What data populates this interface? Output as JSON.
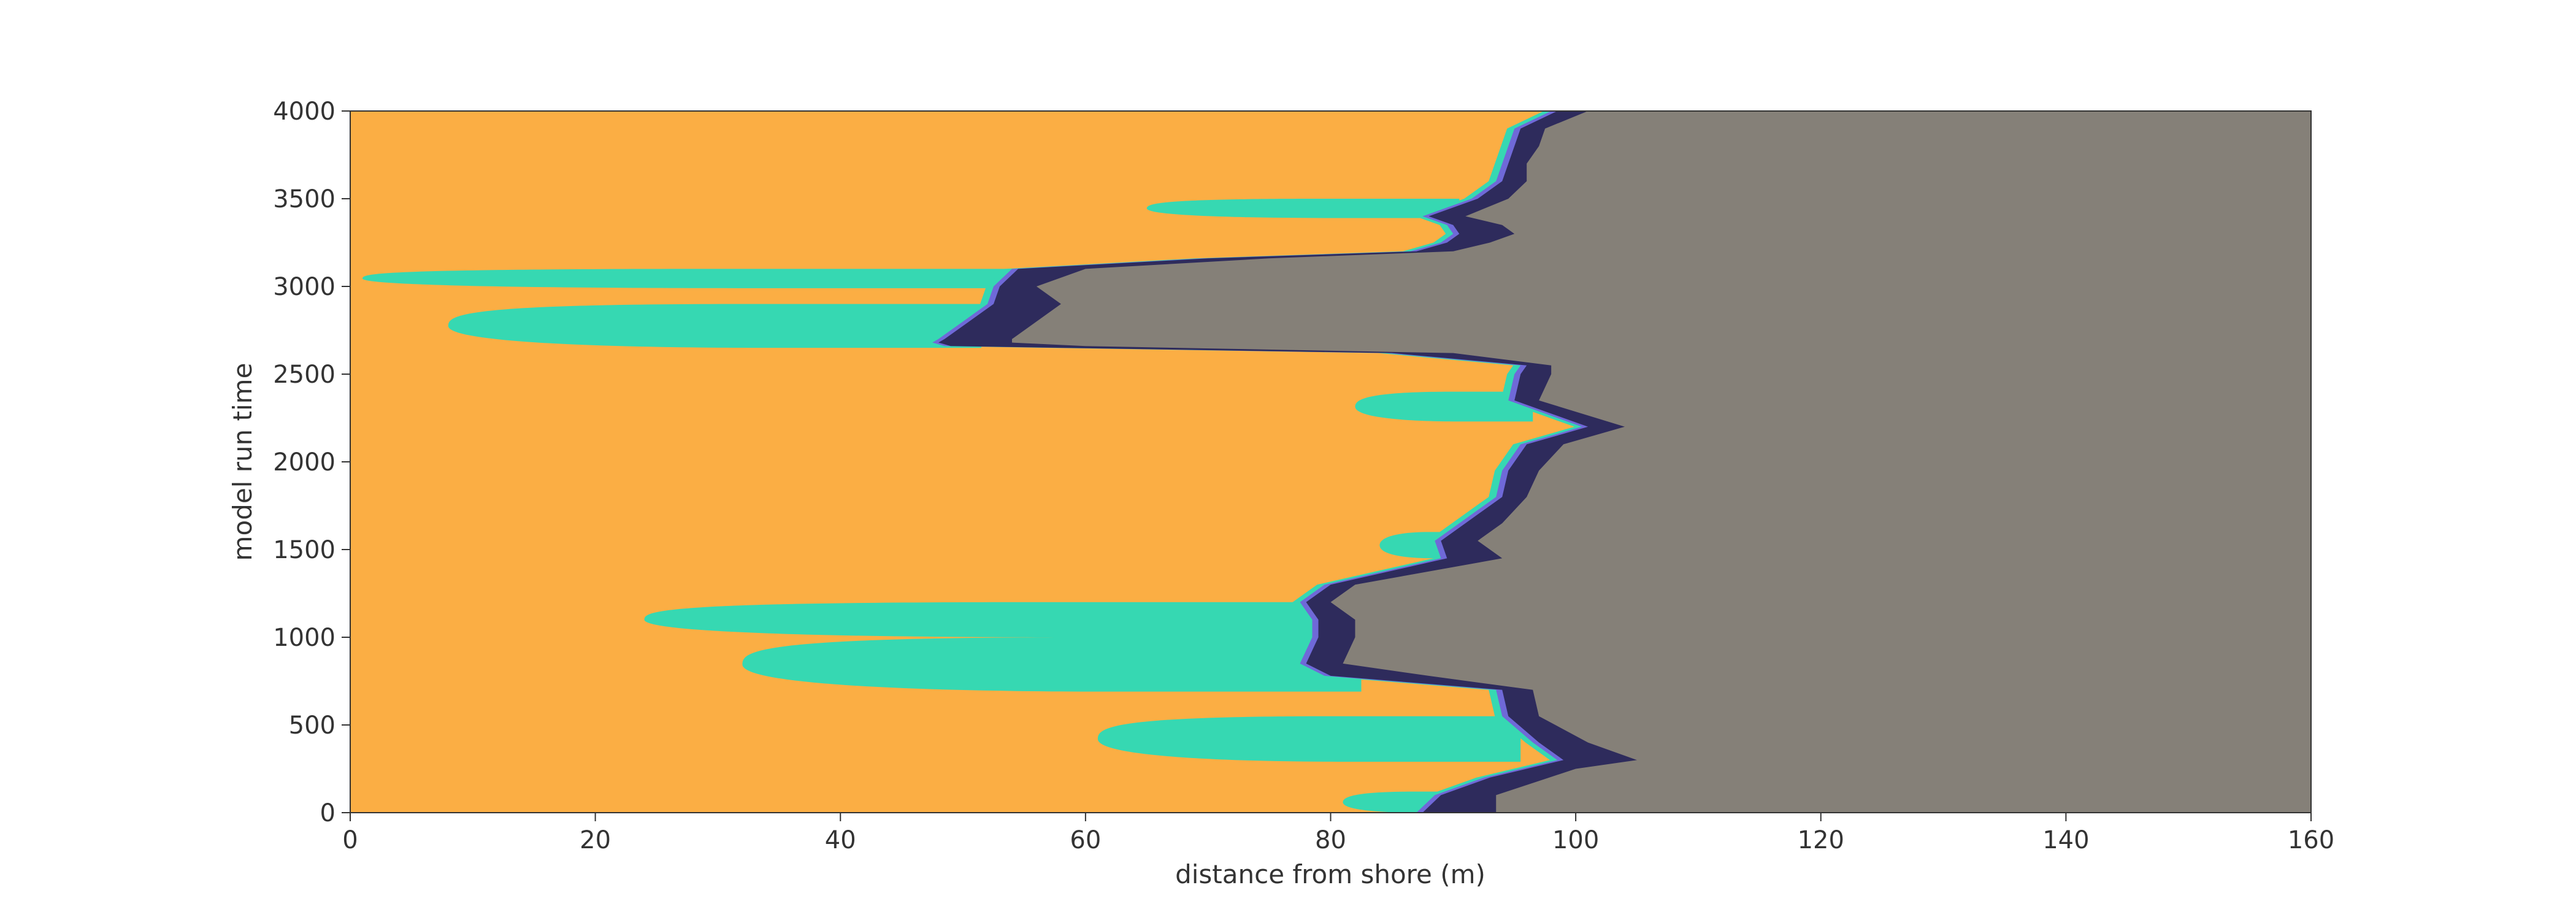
{
  "chart_data": {
    "type": "area",
    "title": "",
    "xlabel": "distance from shore (m)",
    "ylabel": "model run time",
    "xlim": [
      0,
      160
    ],
    "ylim": [
      0,
      4000
    ],
    "xticks": [
      0,
      20,
      40,
      60,
      80,
      100,
      120,
      140,
      160
    ],
    "yticks": [
      0,
      500,
      1000,
      1500,
      2000,
      2500,
      3000,
      3500,
      4000
    ],
    "grid": false,
    "legend": "none",
    "colors": {
      "background_zone": "#FBAE44",
      "right_zone": "#858078",
      "band_dark": "#2E2B5C",
      "band_mid": "#6F69D8",
      "band_light": "#36D8B2"
    },
    "right_zone_boundary": {
      "name": "",
      "t": [
        0,
        100,
        250,
        300,
        400,
        550,
        700,
        780,
        850,
        1000,
        1100,
        1200,
        1300,
        1450,
        1550,
        1650,
        1800,
        1950,
        2100,
        2200,
        2350,
        2500,
        2550,
        2620,
        2660,
        2680,
        2700,
        2800,
        2900,
        3000,
        3100,
        3160,
        3200,
        3250,
        3300,
        3350,
        3400,
        3500,
        3600,
        3700,
        3800,
        3900,
        4000
      ],
      "x": [
        93.5,
        93.5,
        100,
        105,
        101,
        97,
        96.5,
        88,
        81,
        82,
        82,
        80,
        82,
        94,
        92,
        94,
        96,
        97,
        99,
        104,
        97,
        98,
        98,
        90,
        60,
        54,
        54,
        56,
        58,
        56,
        60,
        75,
        90,
        93,
        95,
        94,
        91,
        94.5,
        96,
        96,
        97,
        97.5,
        101
      ]
    },
    "dark_band_left": {
      "name": "",
      "t": [
        0,
        100,
        200,
        300,
        400,
        550,
        700,
        780,
        850,
        1000,
        1100,
        1200,
        1300,
        1450,
        1550,
        1650,
        1800,
        1950,
        2100,
        2200,
        2350,
        2500,
        2550,
        2620,
        2660,
        2680,
        2700,
        2800,
        2900,
        3000,
        3100,
        3160,
        3200,
        3250,
        3300,
        3350,
        3400,
        3500,
        3600,
        3700,
        3800,
        3900,
        4000
      ],
      "x": [
        87.5,
        89,
        93,
        99,
        97,
        94.5,
        94,
        80,
        78,
        79,
        79,
        78,
        80,
        89.5,
        89,
        91,
        94,
        94.5,
        96,
        101,
        95,
        95.5,
        96,
        85,
        49,
        48,
        48.5,
        50.5,
        52.5,
        53,
        54.5,
        70,
        87,
        89.5,
        90.5,
        90,
        88,
        92,
        94,
        94.5,
        95,
        95.5,
        98.5
      ]
    },
    "fingers": [
      {
        "t_top": 1200,
        "t_bot": 1000,
        "x_tip": 24,
        "x_base": 79
      },
      {
        "t_top": 1000,
        "t_bot": 690,
        "x_tip": 32,
        "x_base": 81
      },
      {
        "t_top": 550,
        "t_bot": 290,
        "x_tip": 61,
        "x_base": 94
      },
      {
        "t_top": 120,
        "t_bot": 0,
        "x_tip": 81,
        "x_base": 90
      },
      {
        "t_top": 1600,
        "t_bot": 1450,
        "x_tip": 84,
        "x_base": 90
      },
      {
        "t_top": 2400,
        "t_bot": 2230,
        "x_tip": 82,
        "x_base": 95
      },
      {
        "t_top": 3100,
        "t_bot": 2990,
        "x_tip": 1,
        "x_base": 52
      },
      {
        "t_top": 2900,
        "t_bot": 2650,
        "x_tip": 8,
        "x_base": 50
      },
      {
        "t_top": 3500,
        "t_bot": 3390,
        "x_tip": 65,
        "x_base": 89
      }
    ]
  }
}
